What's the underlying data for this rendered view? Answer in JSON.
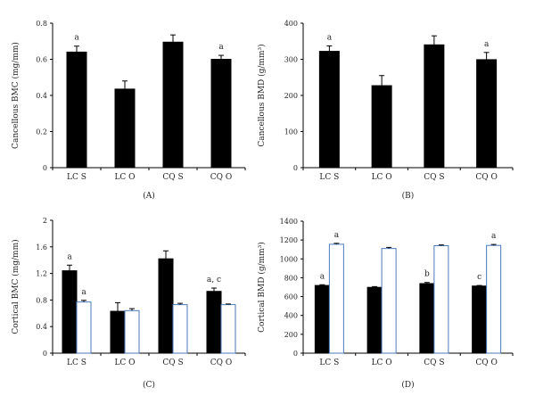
{
  "figure": {
    "bar_color": "#000000",
    "open_bar_color": "#4a7bbd",
    "errorbar_color": "#000000"
  },
  "chart_data": [
    {
      "type": "bar",
      "panel_label": "(A)",
      "ylabel": "Cancellous BMC (mg/mm)",
      "categories": [
        "LC S",
        "LC O",
        "CQ S",
        "CQ O"
      ],
      "ylim": [
        0,
        0.8
      ],
      "yticks": [
        "0",
        "0.2",
        "0.4",
        "0.6",
        "0.8"
      ],
      "series": [
        {
          "fill": "solid",
          "values": [
            0.64,
            0.435,
            0.695,
            0.6
          ],
          "errors": [
            0.033,
            0.045,
            0.04,
            0.022
          ],
          "annotations": [
            "a",
            "",
            "",
            "a"
          ]
        }
      ]
    },
    {
      "type": "bar",
      "panel_label": "(B)",
      "ylabel": "Cancellous BMD (g/mm³)",
      "categories": [
        "LC S",
        "LC O",
        "CQ S",
        "CQ O"
      ],
      "ylim": [
        0,
        400
      ],
      "yticks": [
        "0",
        "100",
        "200",
        "300",
        "400"
      ],
      "series": [
        {
          "fill": "solid",
          "values": [
            322,
            227,
            340,
            299
          ],
          "errors": [
            15,
            28,
            25,
            20
          ],
          "annotations": [
            "a",
            "",
            "",
            "a"
          ]
        }
      ]
    },
    {
      "type": "bar",
      "panel_label": "(C)",
      "ylabel": "Cortical BMC (mg/mm)",
      "categories": [
        "LC S",
        "LC O",
        "CQ S",
        "CQ O"
      ],
      "ylim": [
        0,
        2
      ],
      "yticks": [
        "0",
        "0.4",
        "0.8",
        "1.2",
        "1.6",
        "2"
      ],
      "series": [
        {
          "fill": "solid",
          "values": [
            1.24,
            0.63,
            1.42,
            0.93
          ],
          "errors": [
            0.085,
            0.13,
            0.12,
            0.05
          ],
          "annotations": [
            "a",
            "",
            "",
            "a, c"
          ]
        },
        {
          "fill": "open",
          "values": [
            0.77,
            0.64,
            0.73,
            0.73
          ],
          "errors": [
            0.025,
            0.03,
            0.02,
            0.01
          ],
          "annotations": [
            "a",
            "",
            "",
            ""
          ]
        }
      ]
    },
    {
      "type": "bar",
      "panel_label": "(D)",
      "ylabel": "Cortical BMD (g/mm³)",
      "categories": [
        "LC S",
        "LC O",
        "CQ S",
        "CQ O"
      ],
      "ylim": [
        0,
        1400
      ],
      "yticks": [
        "0",
        "200",
        "400",
        "600",
        "800",
        "1000",
        "1200",
        "1400"
      ],
      "series": [
        {
          "fill": "solid",
          "values": [
            718,
            698,
            738,
            712
          ],
          "errors": [
            8,
            8,
            12,
            6
          ],
          "annotations": [
            "a",
            "",
            "b",
            "c"
          ]
        },
        {
          "fill": "open",
          "values": [
            1155,
            1110,
            1140,
            1143
          ],
          "errors": [
            10,
            12,
            8,
            10
          ],
          "annotations": [
            "a",
            "",
            "",
            "a"
          ]
        }
      ]
    }
  ]
}
